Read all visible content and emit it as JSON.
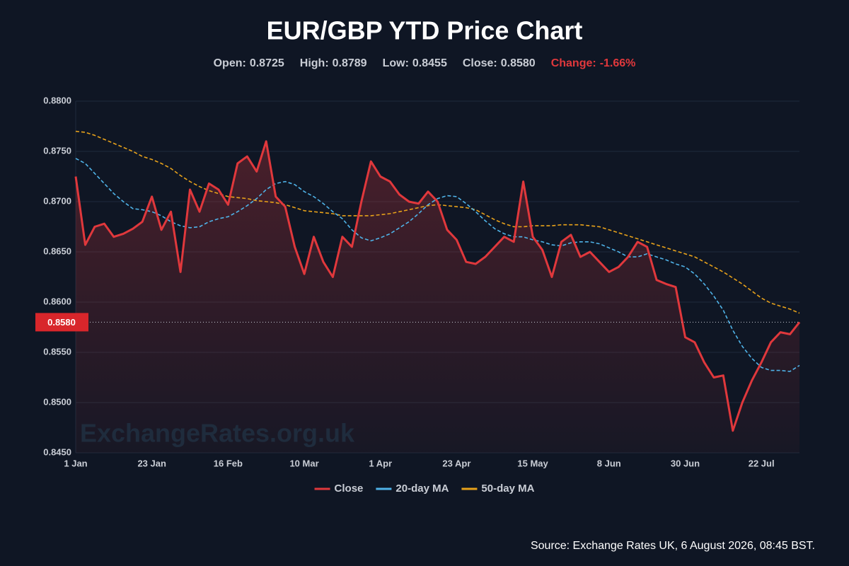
{
  "chart_data": {
    "type": "line",
    "title": "EUR/GBP YTD Price Chart",
    "stats": [
      {
        "label": "Open:",
        "value": "0.8725"
      },
      {
        "label": "High:",
        "value": "0.8789"
      },
      {
        "label": "Low:",
        "value": "0.8455"
      },
      {
        "label": "Close:",
        "value": "0.8580"
      },
      {
        "label": "Change:",
        "value": "-1.66%",
        "color": "#e0383c"
      }
    ],
    "categories": [
      "1 Jan",
      null,
      null,
      null,
      null,
      null,
      null,
      null,
      "23 Jan",
      null,
      null,
      null,
      null,
      null,
      null,
      null,
      "16 Feb",
      null,
      null,
      null,
      null,
      null,
      null,
      null,
      "10 Mar",
      null,
      null,
      null,
      null,
      null,
      null,
      null,
      "1 Apr",
      null,
      null,
      null,
      null,
      null,
      null,
      null,
      "23 Apr",
      null,
      null,
      null,
      null,
      null,
      null,
      null,
      "15 May",
      null,
      null,
      null,
      null,
      null,
      null,
      null,
      "8 Jun",
      null,
      null,
      null,
      null,
      null,
      null,
      null,
      "30 Jun",
      null,
      null,
      null,
      null,
      null,
      null,
      null,
      "22 Jul",
      null,
      null,
      null,
      null
    ],
    "series": [
      {
        "name": "Close",
        "color": "#e0383c",
        "values": [
          0.8725,
          0.8657,
          0.8675,
          0.8678,
          0.8665,
          0.8668,
          0.8673,
          0.868,
          0.8705,
          0.8672,
          0.869,
          0.863,
          0.8712,
          0.869,
          0.8718,
          0.8712,
          0.8697,
          0.8738,
          0.8745,
          0.873,
          0.876,
          0.8705,
          0.8695,
          0.8655,
          0.8628,
          0.8665,
          0.864,
          0.8625,
          0.8665,
          0.8655,
          0.87,
          0.874,
          0.8725,
          0.872,
          0.8707,
          0.87,
          0.8698,
          0.871,
          0.87,
          0.8672,
          0.8662,
          0.864,
          0.8638,
          0.8645,
          0.8655,
          0.8665,
          0.866,
          0.872,
          0.8665,
          0.8652,
          0.8625,
          0.866,
          0.8667,
          0.8645,
          0.865,
          0.864,
          0.863,
          0.8635,
          0.8645,
          0.866,
          0.8655,
          0.8622,
          0.8618,
          0.8615,
          0.8565,
          0.856,
          0.854,
          0.8525,
          0.8527,
          0.8472,
          0.85,
          0.8522,
          0.854,
          0.856,
          0.857,
          0.8568,
          0.858
        ]
      },
      {
        "name": "20-day MA",
        "color": "#4fb3e8",
        "dashed": true,
        "values": [
          0.8743,
          0.8738,
          0.8728,
          0.8718,
          0.8708,
          0.87,
          0.8693,
          0.8692,
          0.869,
          0.8686,
          0.868,
          0.8676,
          0.8674,
          0.8675,
          0.868,
          0.8683,
          0.8685,
          0.869,
          0.8696,
          0.8703,
          0.8712,
          0.8718,
          0.872,
          0.8717,
          0.871,
          0.8705,
          0.8698,
          0.869,
          0.8683,
          0.8672,
          0.8664,
          0.8661,
          0.8664,
          0.8668,
          0.8674,
          0.868,
          0.8688,
          0.8697,
          0.8703,
          0.8706,
          0.8705,
          0.8698,
          0.869,
          0.8681,
          0.8673,
          0.8668,
          0.8665,
          0.8665,
          0.8662,
          0.866,
          0.8657,
          0.8656,
          0.8659,
          0.866,
          0.866,
          0.8658,
          0.8654,
          0.865,
          0.8645,
          0.8645,
          0.8648,
          0.8645,
          0.8642,
          0.8638,
          0.8635,
          0.8628,
          0.8618,
          0.8606,
          0.8592,
          0.8572,
          0.8556,
          0.8544,
          0.8535,
          0.8532,
          0.8532,
          0.8531,
          0.8537
        ]
      },
      {
        "name": "50-day MA",
        "color": "#e8a21a",
        "dashed": true,
        "values": [
          0.877,
          0.8769,
          0.8766,
          0.8762,
          0.8758,
          0.8754,
          0.875,
          0.8745,
          0.8742,
          0.8738,
          0.8733,
          0.8726,
          0.872,
          0.8715,
          0.8711,
          0.8708,
          0.8705,
          0.8704,
          0.8703,
          0.8701,
          0.87,
          0.8699,
          0.8697,
          0.8694,
          0.8691,
          0.869,
          0.8689,
          0.8688,
          0.8686,
          0.8686,
          0.8686,
          0.8686,
          0.8687,
          0.8688,
          0.869,
          0.8692,
          0.8694,
          0.8696,
          0.8697,
          0.8696,
          0.8695,
          0.8694,
          0.8692,
          0.8687,
          0.8682,
          0.8678,
          0.8675,
          0.8675,
          0.8676,
          0.8676,
          0.8676,
          0.8677,
          0.8677,
          0.8677,
          0.8676,
          0.8675,
          0.8672,
          0.8669,
          0.8666,
          0.8663,
          0.866,
          0.8657,
          0.8654,
          0.8651,
          0.8648,
          0.8645,
          0.864,
          0.8635,
          0.863,
          0.8624,
          0.8618,
          0.8611,
          0.8604,
          0.8599,
          0.8596,
          0.8593,
          0.8589
        ]
      }
    ],
    "current": {
      "value": 0.858,
      "label": "0.8580"
    },
    "ylim": [
      0.845,
      0.88
    ],
    "yticks": [
      {
        "value": 0.88,
        "label": "0.8800"
      },
      {
        "value": 0.875,
        "label": "0.8750"
      },
      {
        "value": 0.87,
        "label": "0.8700"
      },
      {
        "value": 0.865,
        "label": "0.8650"
      },
      {
        "value": 0.86,
        "label": "0.8600"
      },
      {
        "value": 0.855,
        "label": "0.8550"
      },
      {
        "value": 0.85,
        "label": "0.8500"
      },
      {
        "value": 0.845,
        "label": "0.8450"
      }
    ],
    "grid": true,
    "legend": "bottom",
    "watermark": "ExchangeRates.org.uk",
    "source": "Source: Exchange Rates UK, 6 August 2026, 08:45 BST."
  }
}
